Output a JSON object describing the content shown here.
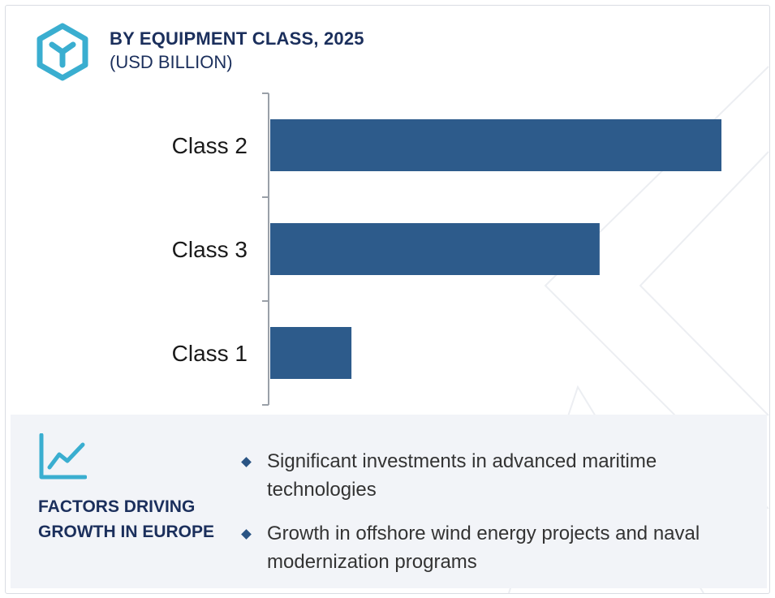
{
  "header": {
    "title": "BY EQUIPMENT CLASS, 2025",
    "subtitle": "(USD BILLION)",
    "icon": "hexagon-y-logo-icon"
  },
  "colors": {
    "bar": "#2d5b8b",
    "title": "#1b2f5c",
    "accent": "#3aaed0",
    "panel_bg": "#f2f4f8"
  },
  "chart_data": {
    "type": "bar",
    "orientation": "horizontal",
    "categories": [
      "Class 2",
      "Class 3",
      "Class 1"
    ],
    "values": [
      100,
      73,
      18
    ],
    "title": "BY EQUIPMENT CLASS, 2025",
    "unit": "(USD BILLION)",
    "xlim": [
      0,
      100
    ],
    "grid": false,
    "legend": "none",
    "value_axis_shown": false
  },
  "factors": {
    "icon": "trend-line-chart-icon",
    "title": "FACTORS DRIVING GROWTH IN EUROPE",
    "items": [
      "Significant investments in advanced maritime technologies",
      "Growth in offshore wind energy projects and naval modernization programs"
    ]
  }
}
